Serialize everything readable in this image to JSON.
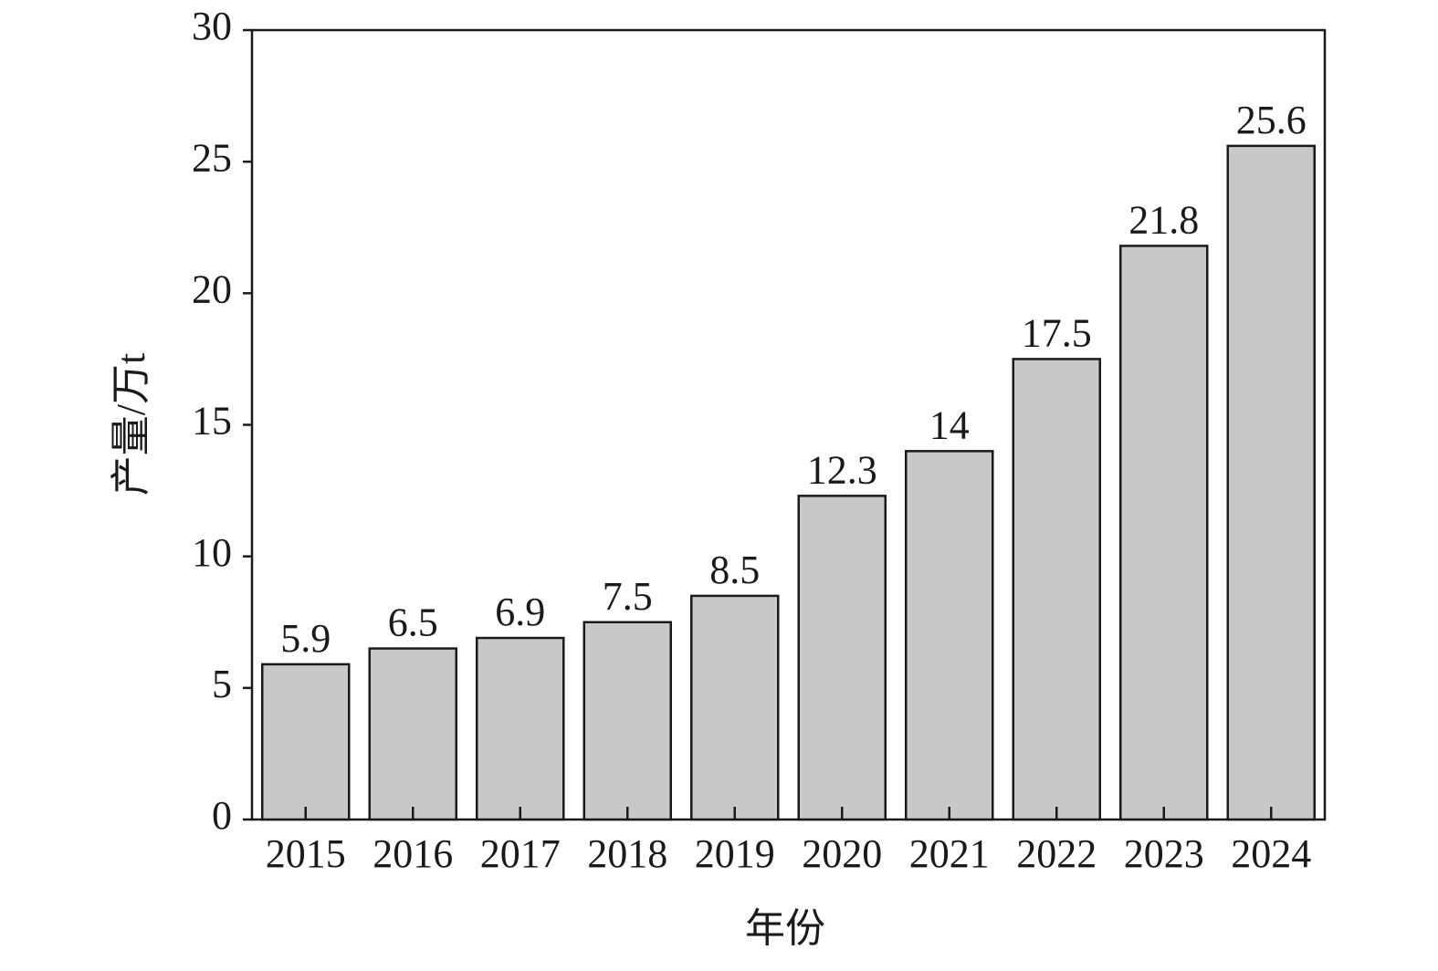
{
  "chart_data": {
    "type": "bar",
    "x_label": "年份",
    "y_label": "产量/万t",
    "categories": [
      "2015",
      "2016",
      "2017",
      "2018",
      "2019",
      "2020",
      "2021",
      "2022",
      "2023",
      "2024"
    ],
    "values": [
      5.9,
      6.5,
      6.9,
      7.5,
      8.5,
      12.3,
      14,
      17.5,
      21.8,
      25.6
    ],
    "color": "#c8c8c8",
    "ylim": [
      0,
      30
    ],
    "yticks": [
      0,
      5,
      10,
      15,
      20,
      25,
      30
    ],
    "grid": false
  }
}
